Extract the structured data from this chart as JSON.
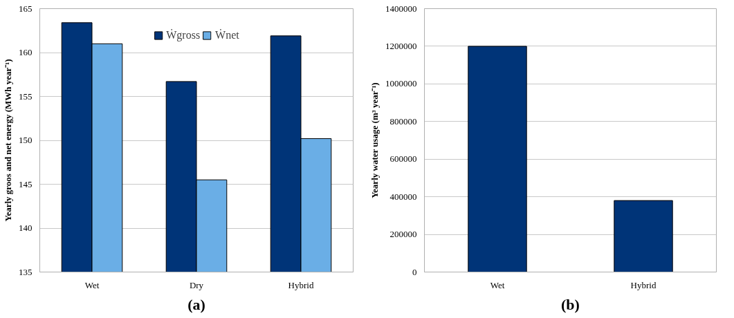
{
  "chart_data": [
    {
      "type": "bar",
      "xlabel": "(a)",
      "ylabel": "Yearly groos and net energy (MWh year⁻¹)",
      "categories": [
        "Wet",
        "Dry",
        "Hybrid"
      ],
      "series": [
        {
          "name": "Ẇgross",
          "color": "#003478",
          "values": [
            163.4,
            156.7,
            161.9
          ]
        },
        {
          "name": "Ẇnet",
          "color": "#6aaee6",
          "values": [
            161.0,
            145.5,
            150.2
          ]
        }
      ],
      "ylim": [
        135,
        165
      ],
      "yticks": [
        135,
        140,
        145,
        150,
        155,
        160,
        165
      ],
      "grid": "y",
      "legend": "top"
    },
    {
      "type": "bar",
      "xlabel": "(b)",
      "ylabel": "Yearly water usage (m³ year⁻¹)",
      "categories": [
        "Wet",
        "Hybrid"
      ],
      "series": [
        {
          "color": "#003478",
          "values": [
            1200000,
            380000
          ]
        }
      ],
      "ylim": [
        0,
        1400000
      ],
      "yticks": [
        0,
        200000,
        400000,
        600000,
        800000,
        1000000,
        1200000,
        1400000
      ],
      "grid": "y"
    }
  ]
}
